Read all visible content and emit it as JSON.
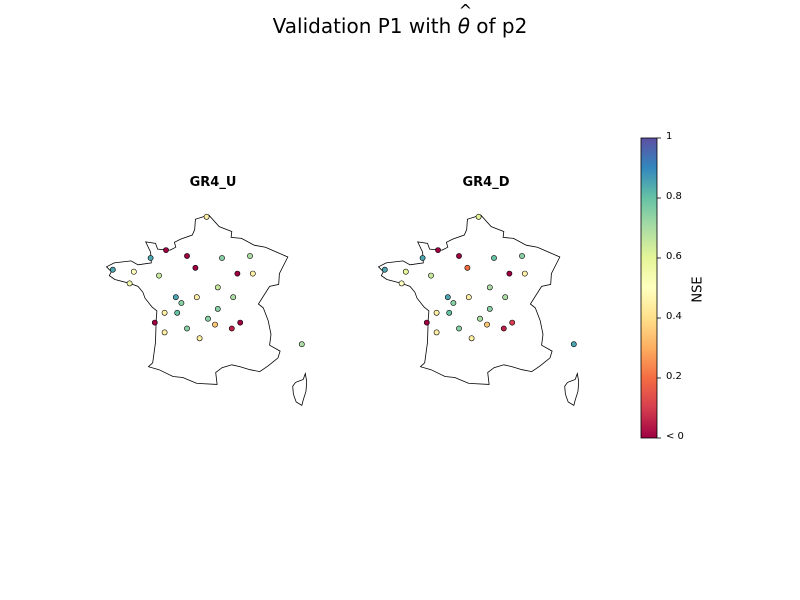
{
  "title_text": "Validation P1 with ",
  "title_theta": "θ",
  "title_hat": "^",
  "title_suffix": " of p2",
  "chart_data": [
    {
      "type": "scatter",
      "title": "GR4_U",
      "points": [
        {
          "lon": 2.4,
          "lat": 51.0,
          "nse": 0.45
        },
        {
          "lon": -0.5,
          "lat": 49.3,
          "nse": 0.0
        },
        {
          "lon": -1.6,
          "lat": 48.9,
          "nse": 0.85
        },
        {
          "lon": 1.0,
          "lat": 49.0,
          "nse": 0.0
        },
        {
          "lon": 3.5,
          "lat": 48.9,
          "nse": 0.75
        },
        {
          "lon": 5.5,
          "lat": 49.0,
          "nse": 0.7
        },
        {
          "lon": -4.3,
          "lat": 48.3,
          "nse": 0.85
        },
        {
          "lon": -2.8,
          "lat": 48.2,
          "nse": 0.5
        },
        {
          "lon": -1.0,
          "lat": 48.0,
          "nse": 0.65
        },
        {
          "lon": 1.6,
          "lat": 48.4,
          "nse": 0.0
        },
        {
          "lon": 4.6,
          "lat": 48.1,
          "nse": 0.0
        },
        {
          "lon": 5.7,
          "lat": 48.1,
          "nse": 0.45
        },
        {
          "lon": -3.1,
          "lat": 47.6,
          "nse": 0.55
        },
        {
          "lon": 3.2,
          "lat": 47.4,
          "nse": 0.65
        },
        {
          "lon": 0.2,
          "lat": 46.9,
          "nse": 0.85
        },
        {
          "lon": 1.7,
          "lat": 46.9,
          "nse": 0.45
        },
        {
          "lon": 4.3,
          "lat": 46.9,
          "nse": 0.7
        },
        {
          "lon": 0.6,
          "lat": 46.6,
          "nse": 0.75
        },
        {
          "lon": 3.2,
          "lat": 46.3,
          "nse": 0.75
        },
        {
          "lon": -0.6,
          "lat": 46.1,
          "nse": 0.45
        },
        {
          "lon": 0.3,
          "lat": 46.1,
          "nse": 0.8
        },
        {
          "lon": 2.5,
          "lat": 45.8,
          "nse": 0.75
        },
        {
          "lon": -1.3,
          "lat": 45.6,
          "nse": 0.0
        },
        {
          "lon": 3.0,
          "lat": 45.5,
          "nse": 0.35
        },
        {
          "lon": 1.0,
          "lat": 45.3,
          "nse": 0.75
        },
        {
          "lon": 4.2,
          "lat": 45.3,
          "nse": 0.05
        },
        {
          "lon": 4.8,
          "lat": 45.6,
          "nse": 0.0
        },
        {
          "lon": -0.6,
          "lat": 45.1,
          "nse": 0.45
        },
        {
          "lon": 1.9,
          "lat": 44.8,
          "nse": 0.45
        },
        {
          "lon": 9.2,
          "lat": 44.5,
          "nse": 0.7
        }
      ]
    },
    {
      "type": "scatter",
      "title": "GR4_D",
      "points": [
        {
          "lon": 2.4,
          "lat": 51.0,
          "nse": 0.6
        },
        {
          "lon": -0.5,
          "lat": 49.3,
          "nse": 0.0
        },
        {
          "lon": -1.6,
          "lat": 48.9,
          "nse": 0.85
        },
        {
          "lon": 1.0,
          "lat": 49.0,
          "nse": 0.0
        },
        {
          "lon": 3.5,
          "lat": 48.9,
          "nse": 0.8
        },
        {
          "lon": 5.5,
          "lat": 49.0,
          "nse": 0.75
        },
        {
          "lon": -4.3,
          "lat": 48.3,
          "nse": 0.85
        },
        {
          "lon": -2.8,
          "lat": 48.2,
          "nse": 0.6
        },
        {
          "lon": -1.0,
          "lat": 48.0,
          "nse": 0.65
        },
        {
          "lon": 1.6,
          "lat": 48.4,
          "nse": 0.2
        },
        {
          "lon": 4.6,
          "lat": 48.1,
          "nse": 0.0
        },
        {
          "lon": 5.7,
          "lat": 48.1,
          "nse": 0.45
        },
        {
          "lon": -3.1,
          "lat": 47.6,
          "nse": 0.5
        },
        {
          "lon": 3.2,
          "lat": 47.4,
          "nse": 0.7
        },
        {
          "lon": 0.2,
          "lat": 46.9,
          "nse": 0.85
        },
        {
          "lon": 1.7,
          "lat": 46.9,
          "nse": 0.45
        },
        {
          "lon": 4.3,
          "lat": 46.9,
          "nse": 0.7
        },
        {
          "lon": 0.6,
          "lat": 46.6,
          "nse": 0.75
        },
        {
          "lon": 3.2,
          "lat": 46.3,
          "nse": 0.75
        },
        {
          "lon": -0.6,
          "lat": 46.1,
          "nse": 0.45
        },
        {
          "lon": 0.3,
          "lat": 46.1,
          "nse": 0.8
        },
        {
          "lon": 2.5,
          "lat": 45.8,
          "nse": 0.7
        },
        {
          "lon": -1.3,
          "lat": 45.6,
          "nse": 0.0
        },
        {
          "lon": 3.0,
          "lat": 45.5,
          "nse": 0.35
        },
        {
          "lon": 1.0,
          "lat": 45.3,
          "nse": 0.75
        },
        {
          "lon": 4.2,
          "lat": 45.3,
          "nse": 0.05
        },
        {
          "lon": 4.8,
          "lat": 45.6,
          "nse": 0.1
        },
        {
          "lon": -0.6,
          "lat": 45.1,
          "nse": 0.45
        },
        {
          "lon": 1.9,
          "lat": 44.8,
          "nse": 0.45
        },
        {
          "lon": 9.2,
          "lat": 44.5,
          "nse": 0.85
        }
      ]
    }
  ],
  "colorbar": {
    "label": "NSE",
    "colormap": "Spectral",
    "range": [
      0,
      1
    ],
    "ticks": [
      {
        "value": 1,
        "label": "1"
      },
      {
        "value": 0.8,
        "label": "0.8"
      },
      {
        "value": 0.6,
        "label": "0.6"
      },
      {
        "value": 0.4,
        "label": "0.4"
      },
      {
        "value": 0.2,
        "label": "0.2"
      },
      {
        "value": 0,
        "label": "< 0"
      }
    ]
  },
  "colors": {
    "spectral_stops": [
      "#9e0142",
      "#d53e4f",
      "#f46d43",
      "#fdae61",
      "#fee08b",
      "#ffffbf",
      "#e6f598",
      "#abdda4",
      "#66c2a5",
      "#3288bd",
      "#5e4fa2"
    ]
  }
}
